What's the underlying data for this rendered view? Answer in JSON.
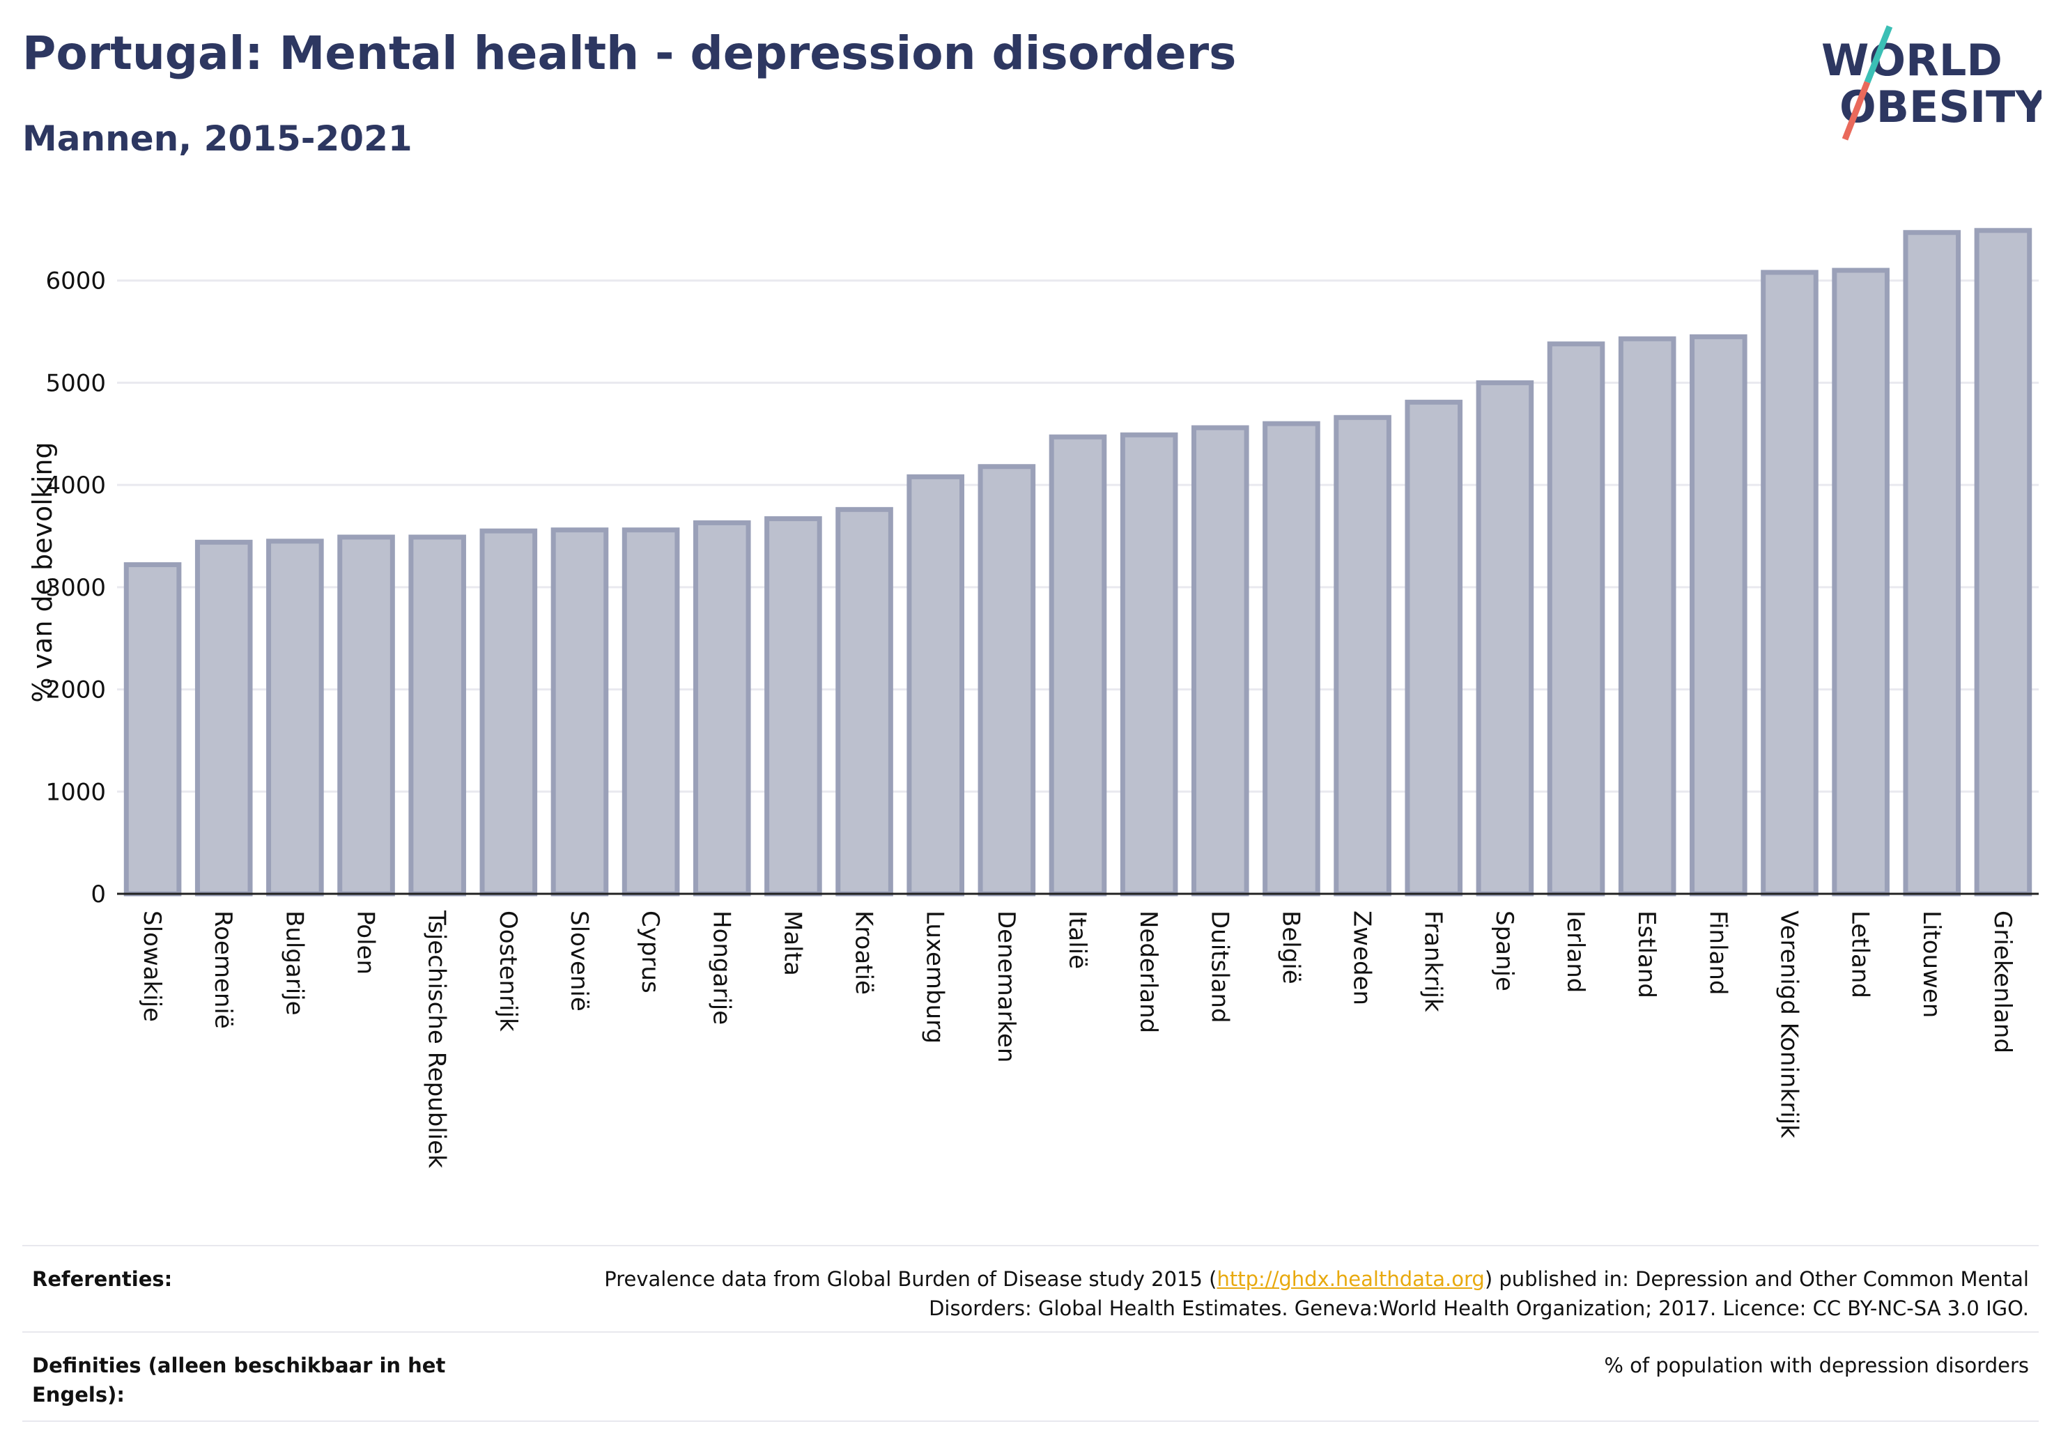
{
  "header": {
    "title": "Portugal: Mental health - depression disorders",
    "subtitle": "Mannen, 2015-2021"
  },
  "logo": {
    "line1": "WORLD",
    "line2": "OBESITY"
  },
  "colors": {
    "bar_fill": "#bcc0ce",
    "bar_stroke": "#9aa0b8",
    "text_dark": "#2d3761",
    "link": "#e8a90e",
    "logo_slash_top": "#3bbfb5",
    "logo_slash_bottom": "#e9695b"
  },
  "chart_data": {
    "type": "bar",
    "ylabel": "% van de bevolking",
    "ylim": [
      0,
      6700
    ],
    "yticks": [
      0,
      1000,
      2000,
      3000,
      4000,
      5000,
      6000
    ],
    "grid": true,
    "categories": [
      "Slowakije",
      "Roemenië",
      "Bulgarije",
      "Polen",
      "Tsjechische Republiek",
      "Oostenrijk",
      "Slovenië",
      "Cyprus",
      "Hongarije",
      "Malta",
      "Kroatië",
      "Luxemburg",
      "Denemarken",
      "Italië",
      "Nederland",
      "Duitsland",
      "België",
      "Zweden",
      "Frankrijk",
      "Spanje",
      "Ierland",
      "Estland",
      "Finland",
      "Verenigd Koninkrijk",
      "Letland",
      "Litouwen",
      "Griekenland"
    ],
    "values": [
      3220,
      3440,
      3450,
      3490,
      3490,
      3550,
      3560,
      3560,
      3630,
      3670,
      3760,
      4080,
      4180,
      4470,
      4490,
      4560,
      4600,
      4660,
      4810,
      5000,
      5380,
      5430,
      5450,
      6080,
      6100,
      6470,
      6490
    ]
  },
  "references": {
    "label": "Referenties:",
    "text_before": "Prevalence data from Global Burden of Disease study 2015 (",
    "link": "http://ghdx.healthdata.org",
    "text_after": ") published in: Depression and Other Common Mental Disorders: Global Health Estimates. Geneva:World Health Organization; 2017. Licence: CC BY-NC-SA 3.0 IGO."
  },
  "definitions": {
    "label": "Definities (alleen beschikbaar in het Engels):",
    "text": "% of population with depression disorders"
  }
}
